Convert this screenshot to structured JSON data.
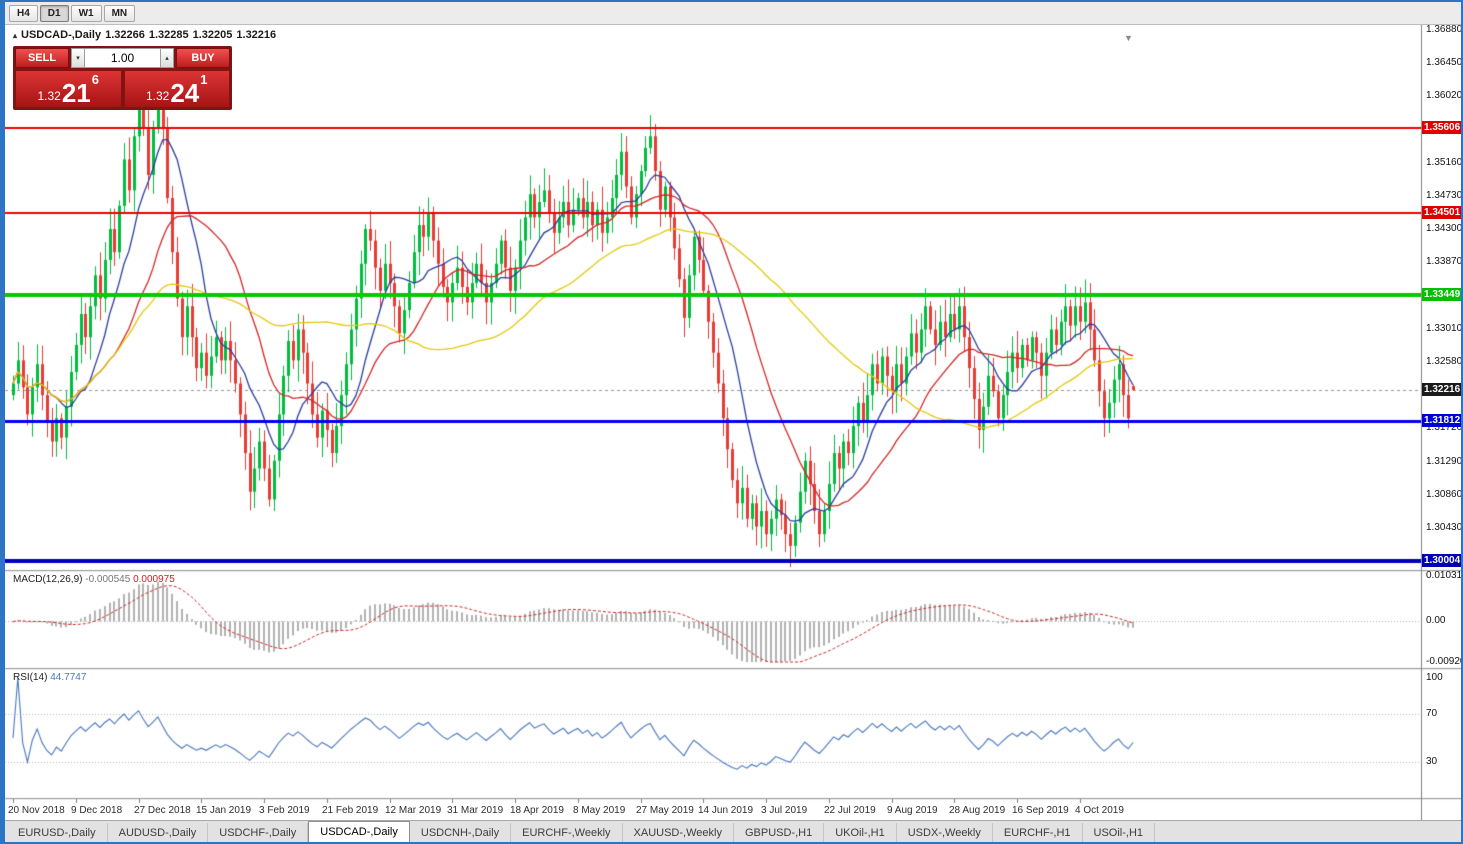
{
  "icons": {
    "header_marker": "▴",
    "up_arrow": "▴",
    "down_arrow": "▾",
    "shift_marker": "▼"
  },
  "window": {
    "toolbar": {
      "timeframes": [
        {
          "label": "H4",
          "active": false
        },
        {
          "label": "D1",
          "active": true
        },
        {
          "label": "W1",
          "active": false
        },
        {
          "label": "MN",
          "active": false
        }
      ]
    },
    "tabs": [
      {
        "label": "EURUSD-,Daily",
        "active": false
      },
      {
        "label": "AUDUSD-,Daily",
        "active": false
      },
      {
        "label": "USDCHF-,Daily",
        "active": false
      },
      {
        "label": "USDCAD-,Daily",
        "active": true
      },
      {
        "label": "USDCNH-,Daily",
        "active": false
      },
      {
        "label": "EURCHF-,Weekly",
        "active": false
      },
      {
        "label": "XAUUSD-,Weekly",
        "active": false
      },
      {
        "label": "GBPUSD-,H1",
        "active": false
      },
      {
        "label": "UKOil-,H1",
        "active": false
      },
      {
        "label": "USDX-,Weekly",
        "active": false
      },
      {
        "label": "EURCHF-,H1",
        "active": false
      },
      {
        "label": "USOil-,H1",
        "active": false
      }
    ]
  },
  "trade_panel": {
    "sell_label": "SELL",
    "buy_label": "BUY",
    "volume": "1.00",
    "bid": {
      "small": "1.32",
      "big": "21",
      "sup": "6"
    },
    "ask": {
      "small": "1.32",
      "big": "24",
      "sup": "1"
    },
    "colors": {
      "button": "#bf1d1d",
      "panel": "#7d1515"
    }
  },
  "chart_data": {
    "type": "candlestick",
    "symbol": "USDCAD-,Daily",
    "timeframe": "Daily",
    "ohlc_header": {
      "open": "1.32266",
      "high": "1.32285",
      "low": "1.32205",
      "close": "1.32216"
    },
    "ylim": [
      1.299,
      1.3694
    ],
    "up_color": "#00bd3f",
    "down_color": "#e63c35",
    "closes": [
      1.323,
      1.326,
      1.3225,
      1.319,
      1.3225,
      1.3255,
      1.3215,
      1.318,
      1.3155,
      1.3185,
      1.316,
      1.32,
      1.3245,
      1.328,
      1.332,
      1.329,
      1.333,
      1.337,
      1.334,
      1.339,
      1.343,
      1.34,
      1.346,
      1.352,
      1.348,
      1.355,
      1.362,
      1.356,
      1.35,
      1.356,
      1.364,
      1.356,
      1.347,
      1.34,
      1.334,
      1.329,
      1.333,
      1.329,
      1.325,
      1.327,
      1.324,
      1.3265,
      1.329,
      1.326,
      1.3285,
      1.326,
      1.323,
      1.319,
      1.314,
      1.309,
      1.312,
      1.3155,
      1.312,
      1.308,
      1.313,
      1.319,
      1.324,
      1.3285,
      1.326,
      1.33,
      1.327,
      1.323,
      1.319,
      1.316,
      1.3195,
      1.317,
      1.314,
      1.3175,
      1.3215,
      1.3255,
      1.33,
      1.334,
      1.3385,
      1.343,
      1.3415,
      1.338,
      1.335,
      1.3385,
      1.336,
      1.333,
      1.3295,
      1.3325,
      1.336,
      1.34,
      1.3435,
      1.342,
      1.345,
      1.3415,
      1.3385,
      1.3355,
      1.3335,
      1.336,
      1.338,
      1.3355,
      1.3335,
      1.336,
      1.3385,
      1.336,
      1.3335,
      1.336,
      1.3385,
      1.3415,
      1.338,
      1.335,
      1.338,
      1.3415,
      1.3445,
      1.3475,
      1.3445,
      1.3465,
      1.348,
      1.345,
      1.3425,
      1.3445,
      1.3465,
      1.3435,
      1.3455,
      1.347,
      1.3445,
      1.3465,
      1.3435,
      1.3455,
      1.3425,
      1.3445,
      1.347,
      1.35,
      1.353,
      1.3485,
      1.3445,
      1.3475,
      1.3505,
      1.3535,
      1.355,
      1.3505,
      1.3455,
      1.3485,
      1.3445,
      1.3405,
      1.3365,
      1.3315,
      1.337,
      1.342,
      1.339,
      1.335,
      1.331,
      1.327,
      1.323,
      1.3185,
      1.3145,
      1.3105,
      1.3075,
      1.3095,
      1.3055,
      1.3075,
      1.3045,
      1.3065,
      1.3035,
      1.3055,
      1.308,
      1.306,
      1.3035,
      1.302,
      1.305,
      1.309,
      1.313,
      1.31,
      1.3065,
      1.3035,
      1.3065,
      1.31,
      1.314,
      1.312,
      1.3155,
      1.314,
      1.3175,
      1.3205,
      1.318,
      1.3215,
      1.3255,
      1.323,
      1.3265,
      1.324,
      1.322,
      1.3255,
      1.323,
      1.3265,
      1.3295,
      1.327,
      1.33,
      1.333,
      1.33,
      1.328,
      1.331,
      1.329,
      1.332,
      1.33,
      1.333,
      1.329,
      1.325,
      1.321,
      1.317,
      1.32,
      1.324,
      1.322,
      1.3185,
      1.3215,
      1.3245,
      1.327,
      1.325,
      1.328,
      1.326,
      1.329,
      1.327,
      1.324,
      1.327,
      1.33,
      1.328,
      1.331,
      1.333,
      1.3305,
      1.333,
      1.331,
      1.3335,
      1.33,
      1.326,
      1.322,
      1.3185,
      1.3205,
      1.3235,
      1.3255,
      1.3215,
      1.3185,
      1.32216
    ],
    "moving_averages": [
      {
        "period": 10,
        "color": "#2c3e9e"
      },
      {
        "period": 22,
        "color": "#d22828"
      },
      {
        "period": 55,
        "color": "#e5c90a"
      }
    ],
    "hlines": [
      {
        "value": 1.35606,
        "color": "#ee0000",
        "width": 2
      },
      {
        "value": 1.34501,
        "color": "#ee0000",
        "width": 2
      },
      {
        "value": 1.33449,
        "color": "#00cc00",
        "width": 4
      },
      {
        "value": 1.31812,
        "color": "#0000ee",
        "width": 3
      },
      {
        "value": 1.30004,
        "color": "#0000bb",
        "width": 4
      }
    ],
    "current_price": {
      "value": 1.32216,
      "label": "1.32216",
      "color": "#1b1b1b"
    },
    "y_axis": {
      "ticks": [
        {
          "v": 1.3688,
          "t": "1.36880"
        },
        {
          "v": 1.3645,
          "t": "1.36450"
        },
        {
          "v": 1.3602,
          "t": "1.36020"
        },
        {
          "v": 1.3516,
          "t": "1.35160"
        },
        {
          "v": 1.3473,
          "t": "1.34730"
        },
        {
          "v": 1.343,
          "t": "1.34300"
        },
        {
          "v": 1.3387,
          "t": "1.33870"
        },
        {
          "v": 1.3301,
          "t": "1.33010"
        },
        {
          "v": 1.3258,
          "t": "1.32580"
        },
        {
          "v": 1.3172,
          "t": "1.31720"
        },
        {
          "v": 1.3129,
          "t": "1.31290"
        },
        {
          "v": 1.3086,
          "t": "1.30860"
        },
        {
          "v": 1.3043,
          "t": "1.30430"
        }
      ],
      "badges": [
        {
          "v": 1.35606,
          "t": "1.35606",
          "c": "#e00000"
        },
        {
          "v": 1.34501,
          "t": "1.34501",
          "c": "#e00000"
        },
        {
          "v": 1.33449,
          "t": "1.33449",
          "c": "#00c000"
        },
        {
          "v": 1.32216,
          "t": "1.32216",
          "c": "#1b1b1b"
        },
        {
          "v": 1.31812,
          "t": "1.31812",
          "c": "#0000d8"
        },
        {
          "v": 1.30004,
          "t": "1.30004",
          "c": "#0000b4"
        }
      ]
    },
    "x_axis": {
      "labels": [
        "20 Nov 2018",
        "9 Dec 2018",
        "27 Dec 2018",
        "15 Jan 2019",
        "3 Feb 2019",
        "21 Feb 2019",
        "12 Mar 2019",
        "31 Mar 2019",
        "18 Apr 2019",
        "8 May 2019",
        "27 May 2019",
        "14 Jun 2019",
        "3 Jul 2019",
        "22 Jul 2019",
        "9 Aug 2019",
        "28 Aug 2019",
        "16 Sep 2019",
        "4 Oct 2019"
      ],
      "bars": [
        0,
        13,
        26,
        39,
        52,
        65,
        78,
        91,
        104,
        117,
        130,
        143,
        156,
        169,
        182,
        195,
        208,
        221
      ]
    },
    "panels": {
      "macd": {
        "label": "MACD(12,26,9)",
        "value_main": "-0.000545",
        "value_signal": "0.000975",
        "range": [
          -0.009203,
          0.010311
        ],
        "axis": [
          {
            "v": 0.010311,
            "t": "0.010311"
          },
          {
            "v": 0,
            "t": "0.00"
          },
          {
            "v": -0.009203,
            "t": "-0.009203"
          }
        ],
        "histogram_color": "#b2b2b2",
        "signal_color": "#cc2a2a"
      },
      "rsi": {
        "label": "RSI(14)",
        "value": "44.7747",
        "period": 14,
        "levels": [
          70,
          30
        ],
        "axis": [
          {
            "v": 100,
            "t": "100"
          },
          {
            "v": 70,
            "t": "70"
          },
          {
            "v": 30,
            "t": "30"
          }
        ],
        "line_color": "#4a78be"
      }
    }
  }
}
